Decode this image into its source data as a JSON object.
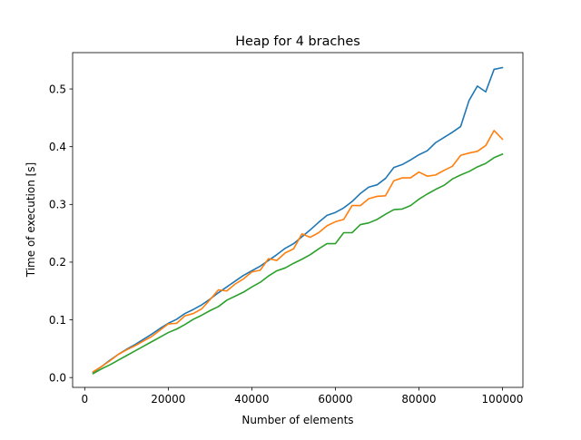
{
  "chart_data": {
    "type": "line",
    "title": "Heap for 4 braches",
    "xlabel": "Number of elements",
    "ylabel": "Time of execution [s]",
    "xlim": [
      -2900,
      104900
    ],
    "ylim": [
      -0.017,
      0.563
    ],
    "xticks": [
      0,
      20000,
      40000,
      60000,
      80000,
      100000
    ],
    "xtick_labels": [
      "0",
      "20000",
      "40000",
      "60000",
      "80000",
      "100000"
    ],
    "yticks": [
      0.0,
      0.1,
      0.2,
      0.3,
      0.4,
      0.5
    ],
    "ytick_labels": [
      "0.0",
      "0.1",
      "0.2",
      "0.3",
      "0.4",
      "0.5"
    ],
    "grid": false,
    "x": [
      2000,
      4000,
      6000,
      8000,
      10000,
      12000,
      14000,
      16000,
      18000,
      20000,
      22000,
      24000,
      26000,
      28000,
      30000,
      32000,
      34000,
      36000,
      38000,
      40000,
      42000,
      44000,
      46000,
      48000,
      50000,
      52000,
      54000,
      56000,
      58000,
      60000,
      62000,
      64000,
      66000,
      68000,
      70000,
      72000,
      74000,
      76000,
      78000,
      80000,
      82000,
      84000,
      86000,
      88000,
      90000,
      92000,
      94000,
      96000,
      98000,
      100000
    ],
    "series": [
      {
        "color": "#1f77b4",
        "values": [
          0.009,
          0.019,
          0.03,
          0.04,
          0.049,
          0.057,
          0.066,
          0.075,
          0.085,
          0.094,
          0.101,
          0.111,
          0.118,
          0.126,
          0.136,
          0.147,
          0.157,
          0.167,
          0.177,
          0.185,
          0.193,
          0.203,
          0.213,
          0.224,
          0.232,
          0.244,
          0.256,
          0.269,
          0.281,
          0.286,
          0.294,
          0.305,
          0.319,
          0.33,
          0.334,
          0.345,
          0.364,
          0.369,
          0.377,
          0.386,
          0.393,
          0.407,
          0.416,
          0.425,
          0.435,
          0.48,
          0.505,
          0.495,
          0.534,
          0.537
        ]
      },
      {
        "color": "#ff7f0e",
        "values": [
          0.01,
          0.019,
          0.029,
          0.04,
          0.048,
          0.055,
          0.063,
          0.071,
          0.082,
          0.093,
          0.094,
          0.107,
          0.111,
          0.119,
          0.135,
          0.152,
          0.15,
          0.162,
          0.171,
          0.183,
          0.186,
          0.206,
          0.203,
          0.216,
          0.223,
          0.249,
          0.243,
          0.251,
          0.263,
          0.27,
          0.274,
          0.298,
          0.298,
          0.31,
          0.314,
          0.315,
          0.341,
          0.346,
          0.346,
          0.356,
          0.349,
          0.351,
          0.359,
          0.366,
          0.385,
          0.389,
          0.392,
          0.402,
          0.428,
          0.413
        ]
      },
      {
        "color": "#2ca02c",
        "values": [
          0.007,
          0.015,
          0.022,
          0.03,
          0.038,
          0.046,
          0.054,
          0.062,
          0.07,
          0.078,
          0.084,
          0.092,
          0.101,
          0.108,
          0.116,
          0.123,
          0.134,
          0.141,
          0.148,
          0.157,
          0.165,
          0.176,
          0.185,
          0.19,
          0.198,
          0.205,
          0.213,
          0.223,
          0.232,
          0.232,
          0.251,
          0.251,
          0.265,
          0.268,
          0.274,
          0.283,
          0.291,
          0.292,
          0.298,
          0.309,
          0.318,
          0.326,
          0.333,
          0.344,
          0.351,
          0.357,
          0.365,
          0.371,
          0.381,
          0.387
        ]
      }
    ]
  }
}
